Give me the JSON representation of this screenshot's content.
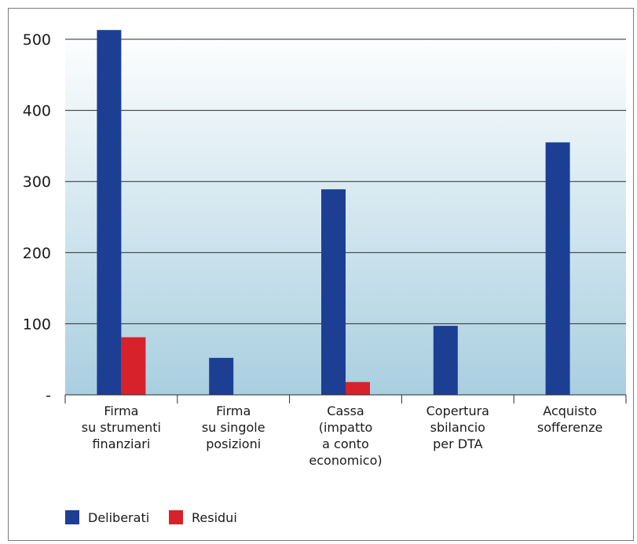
{
  "chart_data": {
    "type": "bar",
    "categories": [
      [
        "Firma",
        "su strumenti",
        "finanziari"
      ],
      [
        "Firma",
        "su singole",
        "posizioni"
      ],
      [
        "Cassa",
        "(impatto",
        "a conto",
        "economico)"
      ],
      [
        "Copertura",
        "sbilancio",
        "per DTA"
      ],
      [
        "Acquisto",
        "sofferenze"
      ]
    ],
    "series": [
      {
        "name": "Deliberati",
        "color": "#1c3f94",
        "values": [
          513,
          52,
          289,
          97,
          355
        ]
      },
      {
        "name": "Residui",
        "color": "#d7222b",
        "values": [
          81,
          0,
          18,
          0,
          0
        ]
      }
    ],
    "yticks": [
      {
        "value": 0,
        "label": "-"
      },
      {
        "value": 100,
        "label": "100"
      },
      {
        "value": 200,
        "label": "200"
      },
      {
        "value": 300,
        "label": "300"
      },
      {
        "value": 400,
        "label": "400"
      },
      {
        "value": 500,
        "label": "500"
      }
    ],
    "ylim": [
      0,
      500
    ],
    "grid": true,
    "legend": "bottom-left",
    "background_gradient": [
      "#ffffff",
      "#a9cfe0"
    ]
  }
}
